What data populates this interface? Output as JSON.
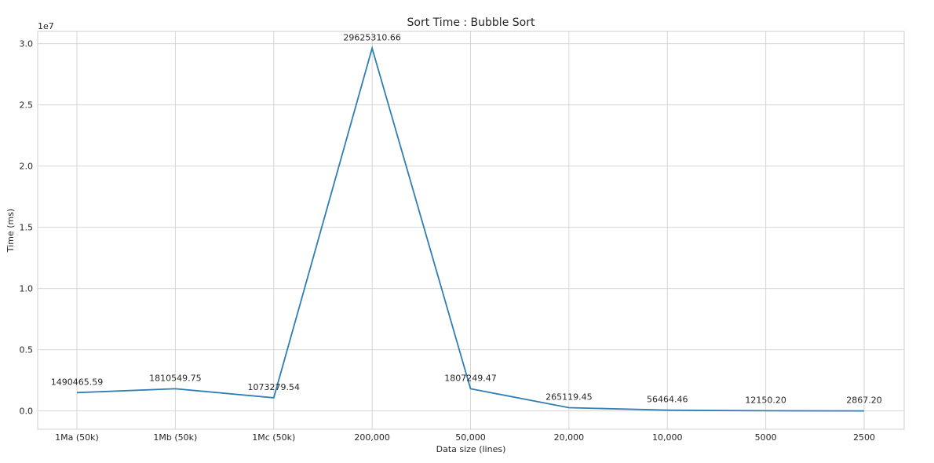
{
  "chart_data": {
    "type": "line",
    "title": "Sort Time : Bubble Sort",
    "xlabel": "Data size (lines)",
    "ylabel": "Time (ms)",
    "y_offset_label": "1e7",
    "categories": [
      "1Ma (50k)",
      "1Mb (50k)",
      "1Mc (50k)",
      "200,000",
      "50,000",
      "20,000",
      "10,000",
      "5000",
      "2500"
    ],
    "values": [
      1490465.59,
      1810549.75,
      1073279.54,
      29625310.66,
      1807249.47,
      265119.45,
      56464.46,
      12150.2,
      2867.2
    ],
    "data_labels": [
      "1490465.59",
      "1810549.75",
      "1073279.54",
      "29625310.66",
      "1807249.47",
      "265119.45",
      "56464.46",
      "12150.20",
      "2867.20"
    ],
    "yticks": [
      0,
      5000000,
      10000000,
      15000000,
      20000000,
      25000000,
      30000000
    ],
    "ytick_labels": [
      "0.0",
      "0.5",
      "1.0",
      "1.5",
      "2.0",
      "2.5",
      "3.0"
    ],
    "ylim": [
      -1500000,
      31000000
    ],
    "grid": true,
    "colors": {
      "line": "#2f7eb4",
      "grid": "#d6d6d6",
      "text": "#262626"
    }
  }
}
